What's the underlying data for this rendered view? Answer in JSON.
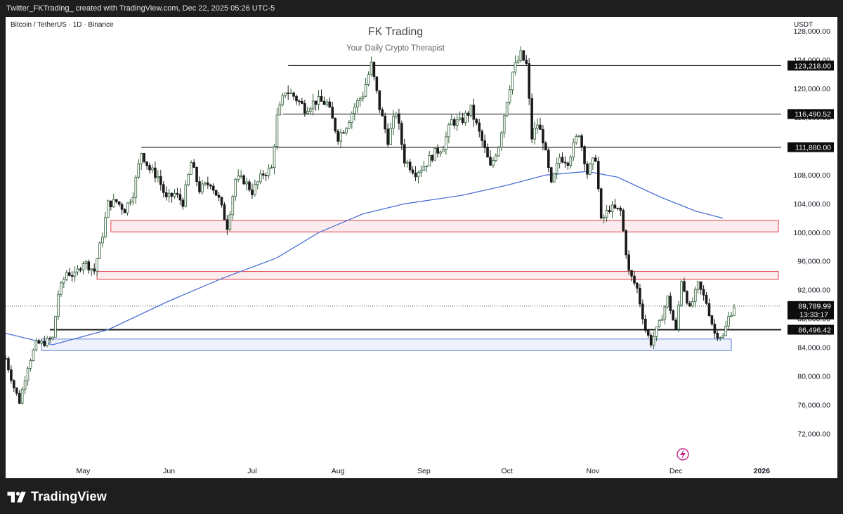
{
  "header": {
    "watermark_line": "Twitter_FKTrading_ created with TradingView.com, Dec 22, 2025 05:26 UTC-5"
  },
  "chart": {
    "symbol_line": "Bitcoin / TetherUS · 1D · Binance",
    "unit": "USDT"
  },
  "footer": {
    "brand": "TradingView",
    "brand_icon": "tradingview-logo-icon",
    "flash_icon": "lightning-icon"
  },
  "chart_data": {
    "type": "candlestick",
    "title": "FK Trading",
    "subtitle": "Your Daily Crypto Therapist",
    "ylim": [
      68000,
      130000
    ],
    "y_ticks": [
      "72,000.00",
      "76,000.00",
      "80,000.00",
      "84,000.00",
      "88,000.00",
      "92,000.00",
      "96,000.00",
      "100,000.00",
      "104,000.00",
      "108,000.00",
      "112,000.00",
      "116,000.00",
      "120,000.00",
      "124,000.00",
      "128,000.00"
    ],
    "x_ticks": [
      "May",
      "Jun",
      "Jul",
      "Aug",
      "Sep",
      "Oct",
      "Nov",
      "Dec",
      "2026"
    ],
    "x_start": "2025-04-03",
    "x_end": "2026-01-08",
    "series": [
      {
        "name": "BTCUSDT daily close",
        "points": [
          [
            "2025-04-03",
            82500
          ],
          [
            "2025-04-06",
            78500
          ],
          [
            "2025-04-08",
            76500
          ],
          [
            "2025-04-11",
            81500
          ],
          [
            "2025-04-14",
            84500
          ],
          [
            "2025-04-17",
            84700
          ],
          [
            "2025-04-20",
            85300
          ],
          [
            "2025-04-22",
            91500
          ],
          [
            "2025-04-25",
            94500
          ],
          [
            "2025-04-28",
            94000
          ],
          [
            "2025-05-01",
            96000
          ],
          [
            "2025-05-05",
            94700
          ],
          [
            "2025-05-08",
            99800
          ],
          [
            "2025-05-10",
            104000
          ],
          [
            "2025-05-13",
            104300
          ],
          [
            "2025-05-16",
            103200
          ],
          [
            "2025-05-19",
            105500
          ],
          [
            "2025-05-22",
            111200
          ],
          [
            "2025-05-25",
            108800
          ],
          [
            "2025-05-28",
            107800
          ],
          [
            "2025-05-31",
            104600
          ],
          [
            "2025-06-03",
            105400
          ],
          [
            "2025-06-06",
            104200
          ],
          [
            "2025-06-09",
            109700
          ],
          [
            "2025-06-12",
            106000
          ],
          [
            "2025-06-16",
            107000
          ],
          [
            "2025-06-19",
            104600
          ],
          [
            "2025-06-22",
            100900
          ],
          [
            "2025-06-25",
            107400
          ],
          [
            "2025-06-28",
            107300
          ],
          [
            "2025-07-01",
            105700
          ],
          [
            "2025-07-05",
            108200
          ],
          [
            "2025-07-08",
            108900
          ],
          [
            "2025-07-10",
            116000
          ],
          [
            "2025-07-13",
            119800
          ],
          [
            "2025-07-16",
            119000
          ],
          [
            "2025-07-20",
            117300
          ],
          [
            "2025-07-24",
            118300
          ],
          [
            "2025-07-28",
            118000
          ],
          [
            "2025-08-01",
            113300
          ],
          [
            "2025-08-04",
            115000
          ],
          [
            "2025-08-07",
            117500
          ],
          [
            "2025-08-10",
            119300
          ],
          [
            "2025-08-13",
            123300
          ],
          [
            "2025-08-16",
            117400
          ],
          [
            "2025-08-19",
            112900
          ],
          [
            "2025-08-22",
            116900
          ],
          [
            "2025-08-25",
            110100
          ],
          [
            "2025-08-29",
            108400
          ],
          [
            "2025-09-01",
            109300
          ],
          [
            "2025-09-04",
            110700
          ],
          [
            "2025-09-08",
            112100
          ],
          [
            "2025-09-11",
            115500
          ],
          [
            "2025-09-14",
            115300
          ],
          [
            "2025-09-18",
            117100
          ],
          [
            "2025-09-22",
            112700
          ],
          [
            "2025-09-25",
            109000
          ],
          [
            "2025-09-28",
            112200
          ],
          [
            "2025-10-01",
            118600
          ],
          [
            "2025-10-03",
            122300
          ],
          [
            "2025-10-06",
            124700
          ],
          [
            "2025-10-08",
            123300
          ],
          [
            "2025-10-10",
            113200
          ],
          [
            "2025-10-12",
            115100
          ],
          [
            "2025-10-14",
            113000
          ],
          [
            "2025-10-17",
            106500
          ],
          [
            "2025-10-20",
            110500
          ],
          [
            "2025-10-23",
            110000
          ],
          [
            "2025-10-27",
            114000
          ],
          [
            "2025-10-30",
            108300
          ],
          [
            "2025-11-02",
            110500
          ],
          [
            "2025-11-04",
            101500
          ],
          [
            "2025-11-07",
            103400
          ],
          [
            "2025-11-11",
            103000
          ],
          [
            "2025-11-14",
            94500
          ],
          [
            "2025-11-17",
            92200
          ],
          [
            "2025-11-20",
            86500
          ],
          [
            "2025-11-22",
            84700
          ],
          [
            "2025-11-25",
            87300
          ],
          [
            "2025-11-28",
            90900
          ],
          [
            "2025-12-01",
            86300
          ],
          [
            "2025-12-03",
            93500
          ],
          [
            "2025-12-06",
            89300
          ],
          [
            "2025-12-09",
            92700
          ],
          [
            "2025-12-12",
            90300
          ],
          [
            "2025-12-15",
            86000
          ],
          [
            "2025-12-18",
            85500
          ],
          [
            "2025-12-20",
            88200
          ],
          [
            "2025-12-22",
            89790
          ]
        ]
      },
      {
        "name": "200-day moving average",
        "points": [
          [
            "2025-04-03",
            86000
          ],
          [
            "2025-04-20",
            84400
          ],
          [
            "2025-05-10",
            86500
          ],
          [
            "2025-06-01",
            90500
          ],
          [
            "2025-06-20",
            93600
          ],
          [
            "2025-07-10",
            96500
          ],
          [
            "2025-07-25",
            100000
          ],
          [
            "2025-08-10",
            102600
          ],
          [
            "2025-08-25",
            104000
          ],
          [
            "2025-09-15",
            105200
          ],
          [
            "2025-10-01",
            106600
          ],
          [
            "2025-10-15",
            108000
          ],
          [
            "2025-10-30",
            108500
          ],
          [
            "2025-11-10",
            107700
          ],
          [
            "2025-11-25",
            105000
          ],
          [
            "2025-12-08",
            103000
          ],
          [
            "2025-12-18",
            102000
          ]
        ]
      }
    ],
    "horizontal_lines": [
      {
        "value": 123218,
        "label": "123,218.00",
        "from": "2025-07-14"
      },
      {
        "value": 116490.52,
        "label": "116,490.52",
        "from": "2025-07-12"
      },
      {
        "value": 111880,
        "label": "111,880.00",
        "from": "2025-05-22"
      },
      {
        "value": 86496.42,
        "label": "86,496.42",
        "from": "2025-04-19"
      }
    ],
    "zones": [
      {
        "low": 100100,
        "high": 101700,
        "from": "2025-05-11",
        "to": "2026-01-07",
        "color": "#e0424b"
      },
      {
        "low": 93500,
        "high": 94600,
        "from": "2025-05-06",
        "to": "2026-01-07",
        "color": "#e0424b"
      },
      {
        "low": 83600,
        "high": 85200,
        "from": "2025-04-16",
        "to": "2025-12-21",
        "color": "#5f83d6"
      }
    ],
    "last_price": {
      "value": 89789.99,
      "label": "89,789.99",
      "countdown": "13:33:17"
    },
    "colors": {
      "up": "#2f5d36",
      "down": "#1a1a1a",
      "ma": "#4d6fd6",
      "zone_red": "#e0424b",
      "zone_blue": "#5f83d6"
    }
  }
}
